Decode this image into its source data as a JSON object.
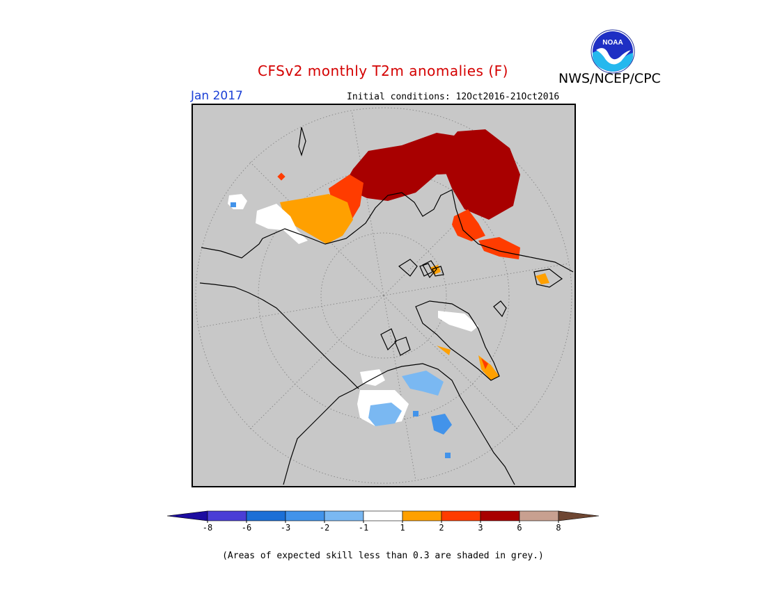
{
  "title": "CFSv2 monthly T2m anomalies (F)",
  "organization": "NWS/NCEP/CPC",
  "logo_text": "NOAA",
  "forecast_month": "Jan 2017",
  "initial_conditions": "Initial conditions: 12Oct2016-21Oct2016",
  "footnote": "(Areas of expected skill less than 0.3 are shaded in grey.)",
  "colors": {
    "no_skill_grey": "#c8c8c8",
    "title_red": "#d40000",
    "month_blue": "#1a3fd6"
  },
  "colorbar": {
    "tick_labels": [
      "-8",
      "-6",
      "-3",
      "-2",
      "-1",
      "1",
      "2",
      "3",
      "6",
      "8"
    ],
    "bins": [
      {
        "color": "#1c0ca0",
        "range": "< -8"
      },
      {
        "color": "#4a3ed6",
        "range": "-8 to -6"
      },
      {
        "color": "#1c6fd6",
        "range": "-6 to -3"
      },
      {
        "color": "#4293ea",
        "range": "-3 to -2"
      },
      {
        "color": "#7ab8f2",
        "range": "-2 to -1"
      },
      {
        "color": "#ffffff",
        "range": "-1 to 1"
      },
      {
        "color": "#ffa000",
        "range": "1 to 2"
      },
      {
        "color": "#ff3c00",
        "range": "2 to 3"
      },
      {
        "color": "#a80000",
        "range": "3 to 6"
      },
      {
        "color": "#c8a090",
        "range": "6 to 8"
      },
      {
        "color": "#6e4632",
        "range": "> 8"
      }
    ]
  }
}
